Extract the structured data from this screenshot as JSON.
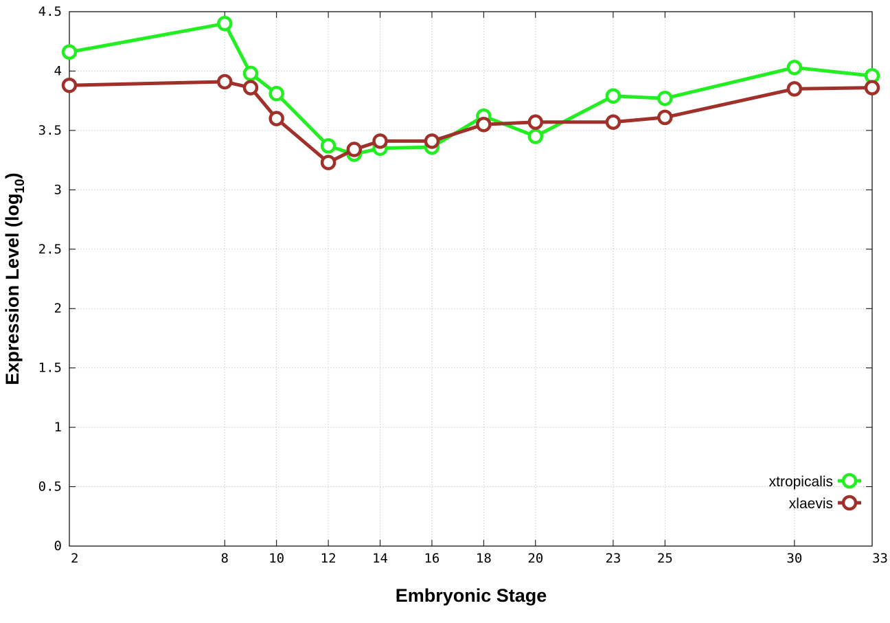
{
  "chart_data": {
    "type": "line",
    "xlabel": "Embryonic Stage",
    "ylabel_main": "Expression Level (log",
    "ylabel_sub": "10",
    "ylabel_close": ")",
    "x": [
      2,
      8,
      9,
      10,
      12,
      13,
      14,
      16,
      18,
      20,
      23,
      25,
      30,
      33
    ],
    "x_ticks": [
      2,
      8,
      10,
      12,
      14,
      16,
      18,
      20,
      23,
      25,
      30,
      33
    ],
    "x_tick_labels": [
      "2",
      "8",
      "10",
      "12",
      "14",
      "16",
      "18",
      "20",
      "23",
      "25",
      "30",
      "33"
    ],
    "xlim": [
      2,
      33
    ],
    "ylim": [
      0,
      4.5
    ],
    "y_ticks": [
      0,
      0.5,
      1,
      1.5,
      2,
      2.5,
      3,
      3.5,
      4,
      4.5
    ],
    "y_tick_labels": [
      "0",
      "0.5",
      "1",
      "1.5",
      "2",
      "2.5",
      "3",
      "3.5",
      "4",
      "4.5"
    ],
    "grid": true,
    "legend_position": "bottom-right",
    "series": [
      {
        "name": "xtropicalis",
        "color": "#22ee22",
        "values": [
          4.16,
          4.4,
          3.98,
          3.81,
          3.37,
          3.3,
          3.35,
          3.36,
          3.62,
          3.45,
          3.79,
          3.77,
          4.03,
          3.96
        ]
      },
      {
        "name": "xlaevis",
        "color": "#a0302a",
        "values": [
          3.88,
          3.91,
          3.86,
          3.6,
          3.23,
          3.34,
          3.41,
          3.41,
          3.55,
          3.57,
          3.57,
          3.61,
          3.85,
          3.86
        ]
      }
    ]
  }
}
